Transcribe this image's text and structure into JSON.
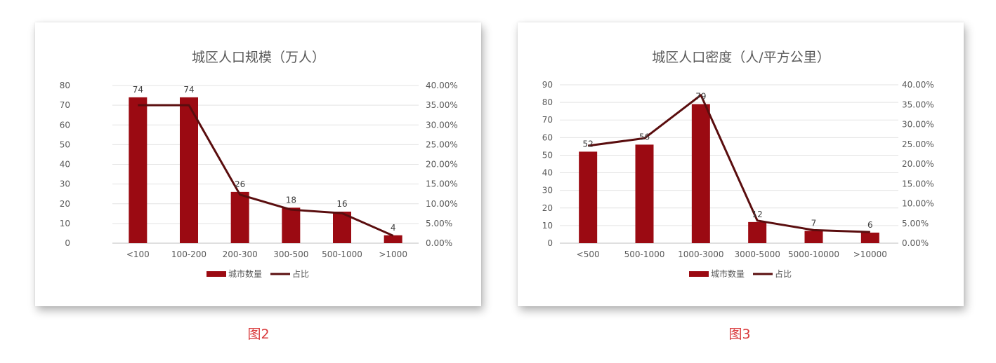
{
  "colors": {
    "bar": "#9b0a12",
    "line": "#5a0d0e",
    "caption": "#d9393b"
  },
  "legend": {
    "bar_label": "城市数量",
    "line_label": "占比"
  },
  "captions": [
    "图2",
    "图3"
  ],
  "chart_data": [
    {
      "type": "bar",
      "title": "城区人口规模（万人）",
      "categories": [
        "<100",
        "100-200",
        "200-300",
        "300-500",
        "500-1000",
        ">1000"
      ],
      "series": [
        {
          "name": "城市数量",
          "type": "bar",
          "axis": "left",
          "values": [
            74,
            74,
            26,
            18,
            16,
            4
          ]
        },
        {
          "name": "占比",
          "type": "line",
          "axis": "right",
          "values": [
            0.35,
            0.35,
            0.123,
            0.085,
            0.076,
            0.019
          ]
        }
      ],
      "y_left": {
        "min": 0,
        "max": 80,
        "ticks": [
          "0",
          "10",
          "20",
          "30",
          "40",
          "50",
          "60",
          "70",
          "80"
        ]
      },
      "y_right": {
        "min": 0,
        "max": 0.4,
        "ticks": [
          "0.00%",
          "5.00%",
          "10.00%",
          "15.00%",
          "20.00%",
          "25.00%",
          "30.00%",
          "35.00%",
          "40.00%"
        ]
      },
      "data_labels": [
        "74",
        "74",
        "26",
        "18",
        "16",
        "4"
      ],
      "grid": true,
      "legend_position": "bottom"
    },
    {
      "type": "bar",
      "title": "城区人口密度（人/平方公里）",
      "categories": [
        "<500",
        "500-1000",
        "1000-3000",
        "3000-5000",
        "5000-10000",
        ">10000"
      ],
      "series": [
        {
          "name": "城市数量",
          "type": "bar",
          "axis": "left",
          "values": [
            52,
            56,
            79,
            12,
            7,
            6
          ]
        },
        {
          "name": "占比",
          "type": "line",
          "axis": "right",
          "values": [
            0.246,
            0.265,
            0.374,
            0.057,
            0.033,
            0.028
          ]
        }
      ],
      "y_left": {
        "min": 0,
        "max": 90,
        "ticks": [
          "0",
          "10",
          "20",
          "30",
          "40",
          "50",
          "60",
          "70",
          "80",
          "90"
        ]
      },
      "y_right": {
        "min": 0,
        "max": 0.4,
        "ticks": [
          "0.00%",
          "5.00%",
          "10.00%",
          "15.00%",
          "20.00%",
          "25.00%",
          "30.00%",
          "35.00%",
          "40.00%"
        ]
      },
      "data_labels": [
        "52",
        "56",
        "79",
        "12",
        "7",
        "6"
      ],
      "grid": true,
      "legend_position": "bottom"
    }
  ]
}
